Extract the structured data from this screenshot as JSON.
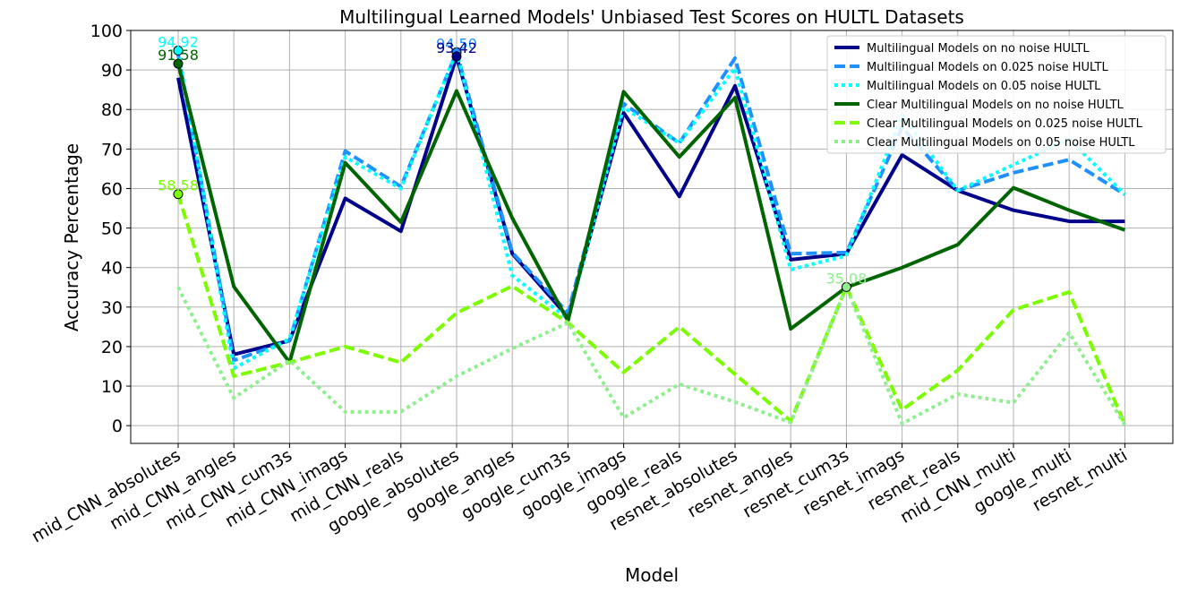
{
  "chart_data": {
    "type": "line",
    "title": "Multilingual Learned Models' Unbiased Test Scores on HULTL Datasets",
    "xlabel": "Model",
    "ylabel": "Accuracy Percentage",
    "ylim": [
      -4.5,
      100
    ],
    "yticks": [
      0,
      10,
      20,
      30,
      40,
      50,
      60,
      70,
      80,
      90,
      100
    ],
    "grid": true,
    "legend_position": "top-right",
    "categories": [
      "mid_CNN_absolutes",
      "mid_CNN_angles",
      "mid_CNN_cum3s",
      "mid_CNN_imags",
      "mid_CNN_reals",
      "google_absolutes",
      "google_angles",
      "google_cum3s",
      "google_imags",
      "google_reals",
      "resnet_absolutes",
      "resnet_angles",
      "resnet_cum3s",
      "resnet_imags",
      "resnet_reals",
      "mid_CNN_multi",
      "google_multi",
      "resnet_multi"
    ],
    "series": [
      {
        "name": "Multilingual Models on no noise HULTL",
        "color": "#00008b",
        "dash": "solid",
        "values": [
          88,
          18,
          21.5,
          57.5,
          49.2,
          93.42,
          43.5,
          27.5,
          79.2,
          58,
          86,
          42,
          43.5,
          68.5,
          59.5,
          54.5,
          51.7,
          51.7
        ]
      },
      {
        "name": "Multilingual Models on 0.025 noise HULTL",
        "color": "#1e90ff",
        "dash": "dashed",
        "values": [
          94,
          16.5,
          21.5,
          69.5,
          60.5,
          94.5,
          43.8,
          28.5,
          81.5,
          71.5,
          93,
          43.5,
          43.8,
          75.5,
          59.5,
          64,
          67.3,
          58.5
        ]
      },
      {
        "name": "Multilingual Models on 0.05 noise HULTL",
        "color": "#00ffff",
        "dash": "dotted",
        "values": [
          94.92,
          14.5,
          22,
          68,
          60,
          94.7,
          38,
          27,
          80.5,
          71.5,
          90.5,
          39.5,
          43,
          78.5,
          59.5,
          66,
          72.5,
          58.5
        ]
      },
      {
        "name": "Clear Multilingual Models on no noise HULTL",
        "color": "#006400",
        "dash": "solid",
        "values": [
          91.58,
          35.2,
          16,
          66.5,
          51.5,
          84.7,
          52.5,
          26.5,
          84.5,
          68,
          83,
          24.5,
          35,
          40,
          45.8,
          60.2,
          54.5,
          49.5
        ]
      },
      {
        "name": "Clear Multilingual Models on 0.025 noise HULTL",
        "color": "#7cfc00",
        "dash": "dashed",
        "values": [
          58.58,
          12.5,
          16,
          20,
          16,
          28.5,
          35.3,
          26,
          13.5,
          25,
          13,
          1.2,
          35.08,
          4,
          14,
          29.3,
          33.8,
          0.2
        ]
      },
      {
        "name": "Clear Multilingual Models on 0.05 noise HULTL",
        "color": "#90ee90",
        "dash": "dotted",
        "values": [
          35,
          7,
          16.5,
          3.5,
          3.5,
          12.5,
          19.5,
          26,
          2,
          10.5,
          6,
          0.8,
          35,
          0.5,
          8,
          5.8,
          23.5,
          0.2
        ]
      }
    ],
    "annotations": [
      {
        "text": "94.92",
        "series": 2,
        "index": 0,
        "color": "#00ffff"
      },
      {
        "text": "91.58",
        "series": 3,
        "index": 0,
        "color": "#006400"
      },
      {
        "text": "58.58",
        "series": 4,
        "index": 0,
        "color": "#7cfc00"
      },
      {
        "text": "94.50",
        "series": 1,
        "index": 5,
        "color": "#1e90ff"
      },
      {
        "text": "93.42",
        "series": 0,
        "index": 5,
        "color": "#00008b"
      },
      {
        "text": "35.08",
        "series": 4,
        "index": 12,
        "color": "#90ee90"
      }
    ]
  }
}
